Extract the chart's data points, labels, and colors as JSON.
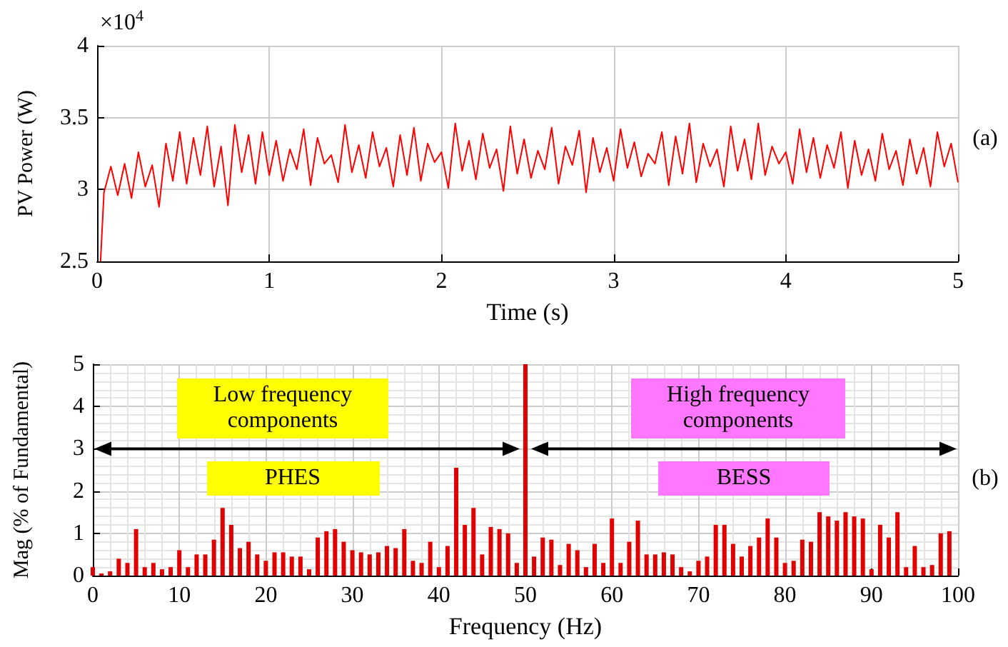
{
  "chart_data": [
    {
      "type": "line",
      "xlabel": "Time (s)",
      "ylabel": "PV Power (W)",
      "xlim": [
        0,
        5
      ],
      "xticks": [
        0,
        1,
        2,
        3,
        4,
        5
      ],
      "ylim": [
        2.5,
        4
      ],
      "yticks": [
        2.5,
        3,
        3.5,
        4
      ],
      "grid": true,
      "annotations": [
        "×10$^{4}$",
        "(a)"
      ],
      "series": [
        {
          "color": "#ff0000",
          "x": [
            0.02,
            0.04,
            0.08,
            0.12,
            0.16,
            0.2,
            0.24,
            0.28,
            0.32,
            0.36,
            0.4,
            0.44,
            0.48,
            0.52,
            0.56,
            0.6,
            0.64,
            0.68,
            0.72,
            0.76,
            0.8,
            0.84,
            0.88,
            0.92,
            0.96,
            1.0,
            1.04,
            1.08,
            1.12,
            1.16,
            1.2,
            1.24,
            1.28,
            1.32,
            1.36,
            1.4,
            1.44,
            1.48,
            1.52,
            1.56,
            1.6,
            1.64,
            1.68,
            1.72,
            1.76,
            1.8,
            1.84,
            1.88,
            1.92,
            1.96,
            2.0,
            2.04,
            2.08,
            2.12,
            2.16,
            2.2,
            2.24,
            2.28,
            2.32,
            2.36,
            2.4,
            2.44,
            2.48,
            2.52,
            2.56,
            2.6,
            2.64,
            2.68,
            2.72,
            2.76,
            2.8,
            2.84,
            2.88,
            2.92,
            2.96,
            3.0,
            3.04,
            3.08,
            3.12,
            3.16,
            3.2,
            3.24,
            3.28,
            3.32,
            3.36,
            3.4,
            3.44,
            3.48,
            3.52,
            3.56,
            3.6,
            3.64,
            3.68,
            3.72,
            3.76,
            3.8,
            3.84,
            3.88,
            3.92,
            3.96,
            4.0,
            4.04,
            4.08,
            4.12,
            4.16,
            4.2,
            4.24,
            4.28,
            4.32,
            4.36,
            4.4,
            4.44,
            4.48,
            4.52,
            4.56,
            4.6,
            4.64,
            4.68,
            4.72,
            4.76,
            4.8,
            4.84,
            4.88,
            4.92,
            4.96,
            5.0
          ],
          "values": [
            2.5,
            2.98,
            3.16,
            2.96,
            3.18,
            2.94,
            3.26,
            3.02,
            3.17,
            2.88,
            3.32,
            3.06,
            3.4,
            3.04,
            3.36,
            3.1,
            3.44,
            3.02,
            3.3,
            2.89,
            3.45,
            3.12,
            3.38,
            3.04,
            3.4,
            3.1,
            3.34,
            3.06,
            3.28,
            3.14,
            3.42,
            3.03,
            3.36,
            3.18,
            3.24,
            3.05,
            3.45,
            3.12,
            3.31,
            3.08,
            3.4,
            3.16,
            3.29,
            3.02,
            3.38,
            3.1,
            3.43,
            3.06,
            3.32,
            3.19,
            3.26,
            3.01,
            3.46,
            3.13,
            3.34,
            3.07,
            3.39,
            3.15,
            3.28,
            2.99,
            3.44,
            3.11,
            3.35,
            3.08,
            3.27,
            3.14,
            3.43,
            3.04,
            3.3,
            3.17,
            3.41,
            2.98,
            3.36,
            3.12,
            3.29,
            3.06,
            3.42,
            3.15,
            3.33,
            3.09,
            3.25,
            3.18,
            3.4,
            3.03,
            3.37,
            3.11,
            3.46,
            3.05,
            3.32,
            3.16,
            3.28,
            3.02,
            3.44,
            3.13,
            3.35,
            3.07,
            3.46,
            3.1,
            3.3,
            3.18,
            3.26,
            3.04,
            3.42,
            3.12,
            3.36,
            3.08,
            3.31,
            3.15,
            3.4,
            3.01,
            3.34,
            3.1,
            3.28,
            3.06,
            3.39,
            3.14,
            3.27,
            3.03,
            3.35,
            3.11,
            3.29,
            3.02,
            3.4,
            3.16,
            3.32,
            3.05
          ]
        }
      ]
    },
    {
      "type": "bar",
      "xlabel": "Frequency (Hz)",
      "ylabel": "Mag (% of Fundamental)",
      "xlim": [
        0,
        100
      ],
      "xticks": [
        0,
        10,
        20,
        30,
        40,
        50,
        60,
        70,
        80,
        90,
        100
      ],
      "ylim": [
        0,
        5
      ],
      "yticks": [
        0,
        1,
        2,
        3,
        4,
        5
      ],
      "grid": true,
      "annotations": [
        "Low frequency components",
        "PHES",
        "High frequency components",
        "BESS",
        "(b)"
      ],
      "series": [
        {
          "color": "#e00000",
          "x": [
            0,
            1,
            2,
            3,
            4,
            5,
            6,
            7,
            8,
            9,
            10,
            11,
            12,
            13,
            14,
            15,
            16,
            17,
            18,
            19,
            20,
            21,
            22,
            23,
            24,
            25,
            26,
            27,
            28,
            29,
            30,
            31,
            32,
            33,
            34,
            35,
            36,
            37,
            38,
            39,
            40,
            41,
            42,
            43,
            44,
            45,
            46,
            47,
            48,
            49,
            50,
            51,
            52,
            53,
            54,
            55,
            56,
            57,
            58,
            59,
            60,
            61,
            62,
            63,
            64,
            65,
            66,
            67,
            68,
            69,
            70,
            71,
            72,
            73,
            74,
            75,
            76,
            77,
            78,
            79,
            80,
            81,
            82,
            83,
            84,
            85,
            86,
            87,
            88,
            89,
            90,
            91,
            92,
            93,
            94,
            95,
            96,
            97,
            98,
            99
          ],
          "values": [
            0.2,
            0.05,
            0.1,
            0.4,
            0.3,
            1.1,
            0.2,
            0.3,
            0.15,
            0.2,
            0.6,
            0.2,
            0.5,
            0.5,
            0.85,
            1.6,
            1.2,
            0.65,
            0.8,
            0.5,
            0.35,
            0.55,
            0.55,
            0.45,
            0.45,
            0.15,
            0.9,
            1.05,
            1.1,
            0.8,
            0.6,
            0.55,
            0.5,
            0.55,
            0.7,
            0.65,
            1.1,
            0.35,
            0.3,
            0.8,
            0.2,
            0.7,
            2.55,
            1.2,
            1.6,
            0.5,
            1.15,
            1.1,
            1.0,
            0.3,
            5,
            0.45,
            0.9,
            0.85,
            0.25,
            0.75,
            0.6,
            0.2,
            0.75,
            0.3,
            1.35,
            0.3,
            0.8,
            1.3,
            0.5,
            0.5,
            0.55,
            0.5,
            0.2,
            0.1,
            0.35,
            0.45,
            1.2,
            1.2,
            0.75,
            0.45,
            0.7,
            0.9,
            1.35,
            0.9,
            0.3,
            0.35,
            0.85,
            0.8,
            1.5,
            1.4,
            1.3,
            1.5,
            1.4,
            1.35,
            0.15,
            1.2,
            0.9,
            1.5,
            0.2,
            0.7,
            0.2,
            0.25,
            1.0,
            1.05
          ]
        }
      ]
    }
  ]
}
